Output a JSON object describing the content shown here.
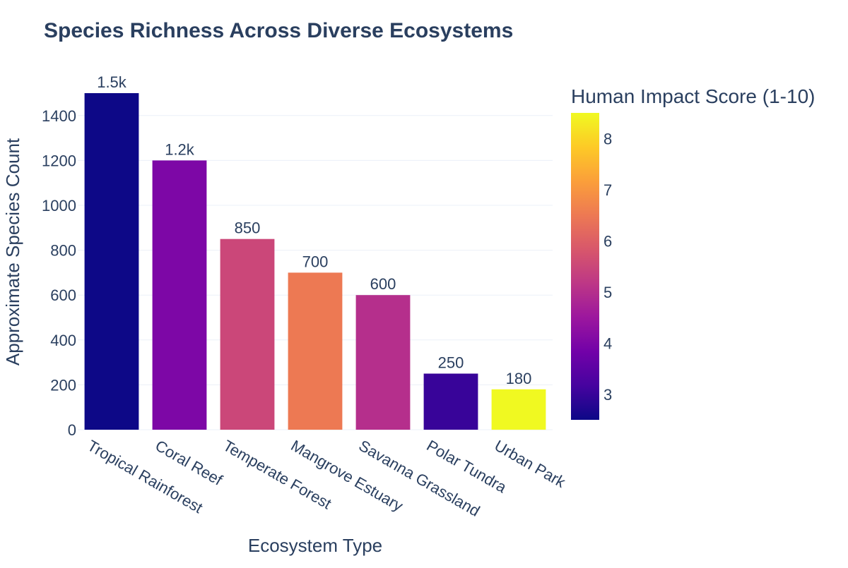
{
  "chart_data": {
    "type": "bar",
    "title": "Species Richness Across Diverse Ecosystems",
    "xlabel": "Ecosystem Type",
    "ylabel": "Approximate Species Count",
    "categories": [
      "Tropical Rainforest",
      "Coral Reef",
      "Temperate Forest",
      "Mangrove Estuary",
      "Savanna Grassland",
      "Polar Tundra",
      "Urban Park"
    ],
    "values": [
      1500,
      1200,
      850,
      700,
      600,
      250,
      180
    ],
    "value_labels": [
      "1.5k",
      "1.2k",
      "850",
      "700",
      "600",
      "250",
      "180"
    ],
    "human_impact_score": [
      2.5,
      4,
      5.5,
      6.5,
      5,
      3,
      8.5
    ],
    "ylim": [
      0,
      1500
    ],
    "yticks": [
      0,
      200,
      400,
      600,
      800,
      1000,
      1200,
      1400
    ],
    "grid": true,
    "colorbar": {
      "title": "Human Impact Score (1-10)",
      "range": [
        2.5,
        8.5
      ],
      "ticks": [
        3,
        4,
        5,
        6,
        7,
        8
      ],
      "colorscale": [
        "#0d0887",
        "#46039f",
        "#7201a8",
        "#9c179e",
        "#bd3786",
        "#d8576b",
        "#ed7953",
        "#fb9f3a",
        "#fdca26",
        "#f0f921"
      ]
    },
    "colors": {
      "text": "#2a3f5f",
      "grid": "#ebf0f8",
      "title": "#2a3f5f"
    }
  }
}
